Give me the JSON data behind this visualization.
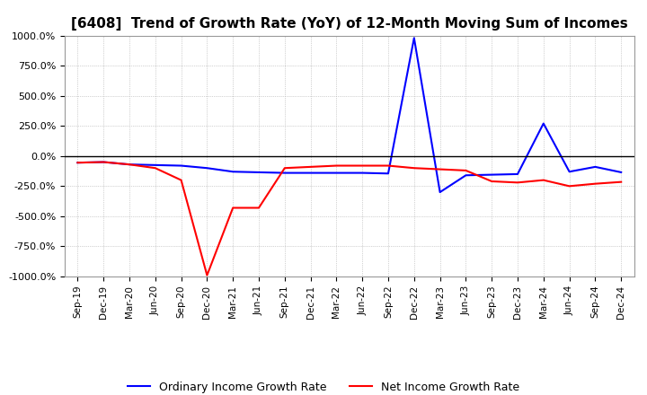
{
  "title": "[6408]  Trend of Growth Rate (YoY) of 12-Month Moving Sum of Incomes",
  "title_fontsize": 11,
  "ylim": [
    -1000,
    1000
  ],
  "yticks": [
    -1000,
    -750,
    -500,
    -250,
    0,
    250,
    500,
    750,
    1000
  ],
  "ytick_labels": [
    "-1000.0%",
    "-750.0%",
    "-500.0%",
    "-250.0%",
    "0.0%",
    "250.0%",
    "500.0%",
    "750.0%",
    "1000.0%"
  ],
  "x_labels": [
    "Sep-19",
    "Dec-19",
    "Mar-20",
    "Jun-20",
    "Sep-20",
    "Dec-20",
    "Mar-21",
    "Jun-21",
    "Sep-21",
    "Dec-21",
    "Mar-22",
    "Jun-22",
    "Sep-22",
    "Dec-22",
    "Mar-23",
    "Jun-23",
    "Sep-23",
    "Dec-23",
    "Mar-24",
    "Jun-24",
    "Sep-24",
    "Dec-24"
  ],
  "ordinary_income": [
    -55,
    -50,
    -70,
    -75,
    -80,
    -100,
    -130,
    -135,
    -140,
    -140,
    -140,
    -140,
    -145,
    980,
    -300,
    -160,
    -155,
    -150,
    270,
    -130,
    -90,
    -135
  ],
  "net_income": [
    -55,
    -50,
    -70,
    -100,
    -200,
    -990,
    -430,
    -430,
    -100,
    -90,
    -80,
    -80,
    -80,
    -100,
    -110,
    -120,
    -210,
    -220,
    -200,
    -250,
    -230,
    -215
  ],
  "ordinary_color": "#0000ff",
  "net_color": "#ff0000",
  "background_color": "#ffffff",
  "grid_color": "#aaaaaa",
  "legend_ordinary": "Ordinary Income Growth Rate",
  "legend_net": "Net Income Growth Rate",
  "line_width": 1.5
}
